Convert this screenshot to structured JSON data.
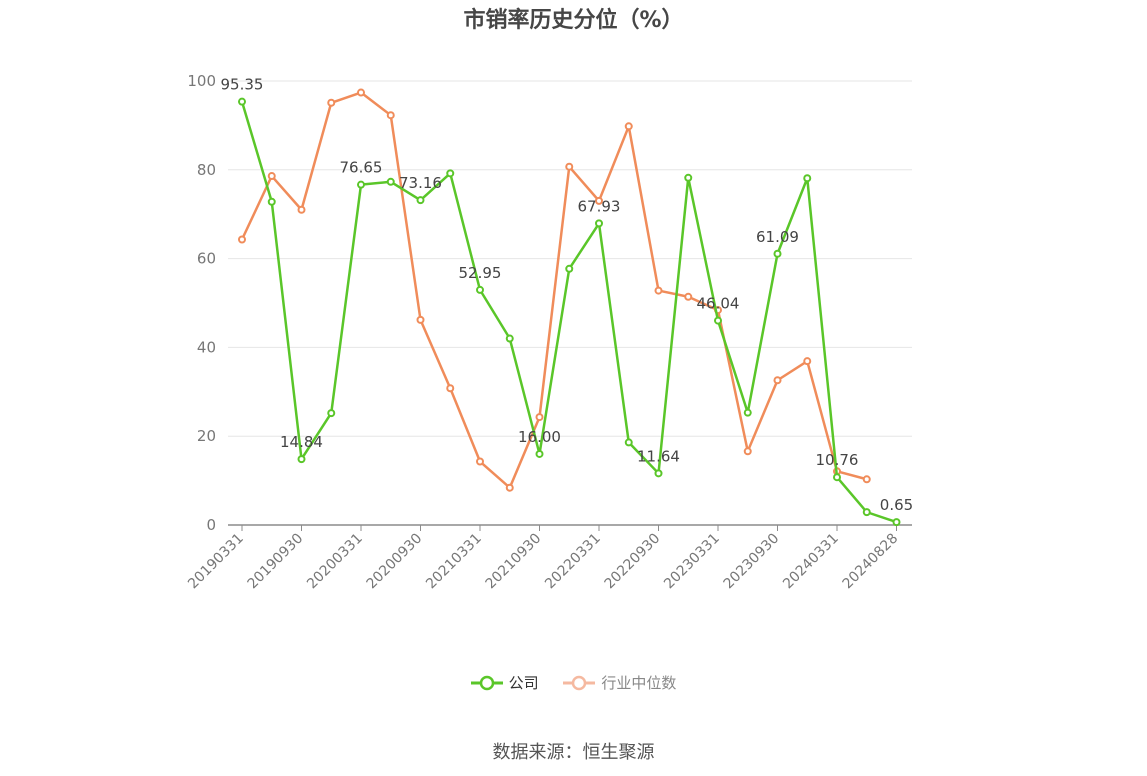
{
  "title": "市销率历史分位（%）",
  "source": "数据来源：恒生聚源",
  "colors": {
    "company": "#5ac629",
    "industry": "#f08c5a",
    "industry_legend": "#f5b9a0",
    "grid": "#e6e6e6",
    "axis": "#8c8c8c"
  },
  "chart_data": {
    "type": "line",
    "title": "市销率历史分位（%）",
    "xlabel": "",
    "ylabel": "",
    "ylim": [
      0,
      100
    ],
    "yticks": [
      0,
      20,
      40,
      60,
      80,
      100
    ],
    "grid": true,
    "legend_position": "bottom",
    "x": [
      "20190331",
      "20190630",
      "20190930",
      "20191231",
      "20200331",
      "20200630",
      "20200930",
      "20201231",
      "20210331",
      "20210630",
      "20210930",
      "20211231",
      "20220331",
      "20220630",
      "20220930",
      "20221231",
      "20230331",
      "20230630",
      "20230930",
      "20231231",
      "20240331",
      "20240630",
      "20240828"
    ],
    "xtick_labels": [
      "20190331",
      "20190930",
      "20200331",
      "20200930",
      "20210331",
      "20210930",
      "20220331",
      "20220930",
      "20230331",
      "20230930",
      "20240331",
      "20240828"
    ],
    "series": [
      {
        "name": "公司",
        "color": "#5ac629",
        "values": [
          95.35,
          72.8,
          14.84,
          25.2,
          76.65,
          77.3,
          73.16,
          79.2,
          52.95,
          42.0,
          16.0,
          57.7,
          67.93,
          18.6,
          11.64,
          78.2,
          46.04,
          25.3,
          61.09,
          78.1,
          10.76,
          2.9,
          0.65
        ]
      },
      {
        "name": "行业中位数",
        "color": "#f08c5a",
        "values": [
          64.3,
          78.6,
          71.0,
          95.1,
          97.4,
          92.3,
          46.2,
          30.8,
          14.3,
          8.4,
          24.3,
          80.7,
          73.0,
          89.8,
          52.8,
          51.4,
          48.4,
          16.6,
          32.6,
          36.9,
          12.1,
          10.3,
          null
        ]
      }
    ],
    "annotations": [
      {
        "index": 0,
        "label": "95.35"
      },
      {
        "index": 2,
        "label": "14.84"
      },
      {
        "index": 4,
        "label": "76.65"
      },
      {
        "index": 6,
        "label": "73.16"
      },
      {
        "index": 8,
        "label": "52.95"
      },
      {
        "index": 10,
        "label": "16.00"
      },
      {
        "index": 12,
        "label": "67.93"
      },
      {
        "index": 14,
        "label": "11.64"
      },
      {
        "index": 16,
        "label": "46.04"
      },
      {
        "index": 18,
        "label": "61.09"
      },
      {
        "index": 20,
        "label": "10.76"
      },
      {
        "index": 22,
        "label": "0.65"
      }
    ]
  }
}
